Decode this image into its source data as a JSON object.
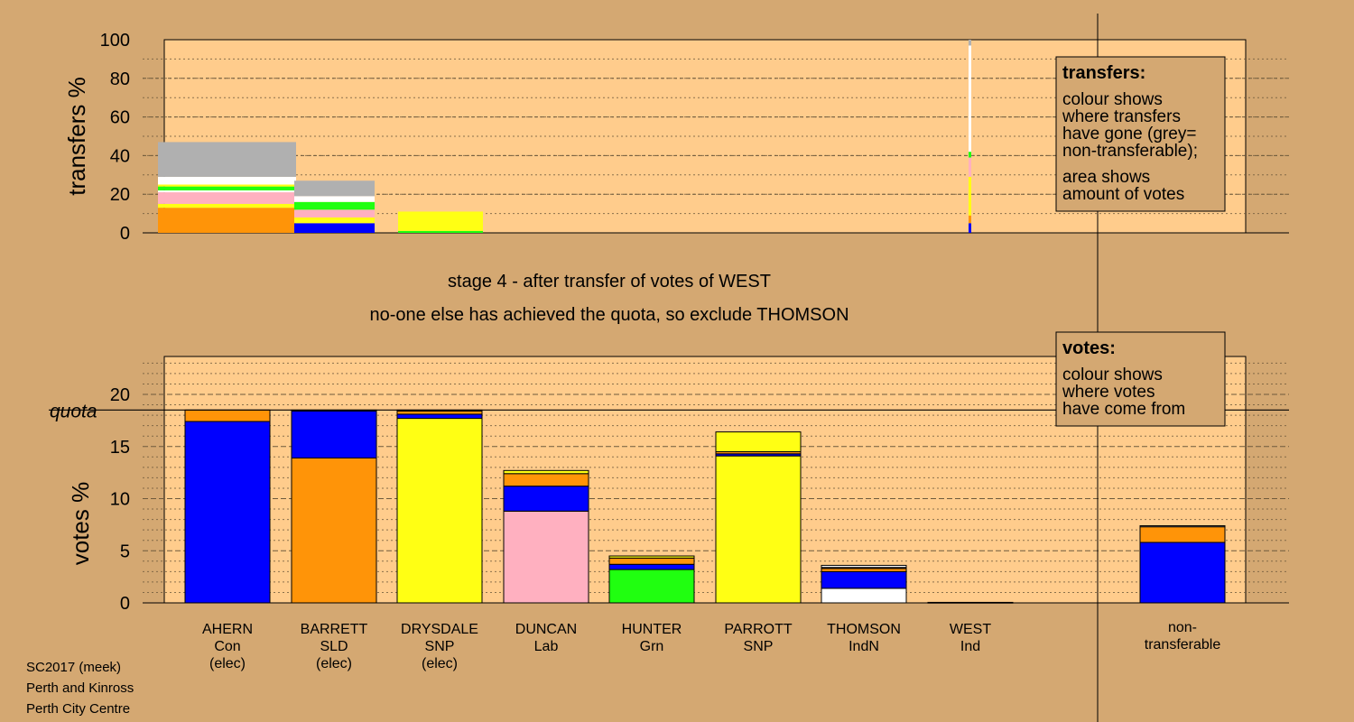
{
  "colors": {
    "background": "#d4a872",
    "plot_area": "#ffcc8c",
    "Con": "#0000ff",
    "SLD": "#ff9408",
    "SNP": "#ffff14",
    "Lab": "#ffb0c0",
    "Grn": "#20ff10",
    "Ind": "#ffffff",
    "non-transferable": "#b0b0b0"
  },
  "stage_line1": "stage 4 - after transfer of votes of WEST",
  "stage_line2": "no-one else has achieved the quota, so exclude THOMSON",
  "footer": [
    "SC2017 (meek)",
    "Perth and Kinross",
    "Perth City Centre"
  ],
  "legend_transfers": {
    "title": "transfers:",
    "lines": [
      "colour shows",
      "where transfers",
      "have gone (grey=",
      "non-transferable);",
      "area shows",
      "amount of votes"
    ]
  },
  "legend_votes": {
    "title": "votes:",
    "lines": [
      "colour shows",
      "where votes",
      "have come from"
    ]
  },
  "chart_data": [
    {
      "type": "bar",
      "subtype": "variable-width stacked (transfer flows)",
      "ylabel": "transfers %",
      "ylim": [
        0,
        100
      ],
      "yticks": [
        0,
        20,
        40,
        60,
        80,
        100
      ],
      "grid": true,
      "blocks": [
        {
          "width_share": 10,
          "segments": [
            {
              "color": "SLD",
              "value": 13
            },
            {
              "color": "SNP",
              "value": 2
            },
            {
              "color": "Lab",
              "value": 6
            },
            {
              "color": "Ind",
              "value": 1
            },
            {
              "color": "Grn",
              "value": 2
            },
            {
              "color": "SNP",
              "value": 1
            },
            {
              "color": "Ind",
              "value": 4
            },
            {
              "color": "non-transferable",
              "value": 18
            }
          ]
        },
        {
          "width_share": 5.8,
          "segments": [
            {
              "color": "Con",
              "value": 5
            },
            {
              "color": "SNP",
              "value": 3
            },
            {
              "color": "Lab",
              "value": 4
            },
            {
              "color": "Grn",
              "value": 4
            },
            {
              "color": "Ind",
              "value": 3
            },
            {
              "color": "non-transferable",
              "value": 8
            }
          ]
        },
        {
          "width_share": 6.2,
          "segments": [
            {
              "color": "Grn",
              "value": 1
            },
            {
              "color": "SNP",
              "value": 10
            }
          ]
        },
        {
          "width_share": 0.1,
          "segments": [
            {
              "color": "Con",
              "value": 5
            },
            {
              "color": "SLD",
              "value": 4
            },
            {
              "color": "SNP",
              "value": 20
            },
            {
              "color": "Lab",
              "value": 10
            },
            {
              "color": "Grn",
              "value": 3
            },
            {
              "color": "Ind",
              "value": 55
            },
            {
              "color": "non-transferable",
              "value": 3
            }
          ]
        }
      ]
    },
    {
      "type": "bar",
      "subtype": "stacked",
      "ylabel": "votes %",
      "ylim": [
        0,
        24
      ],
      "yticks": [
        0,
        5,
        10,
        15,
        20
      ],
      "grid": true,
      "quota": 18.5,
      "quota_label": "quota",
      "candidates": [
        {
          "name": "AHERN",
          "party": "Con",
          "status": "(elec)",
          "segments": [
            {
              "color": "Con",
              "value": 17.4
            },
            {
              "color": "SLD",
              "value": 1.1
            }
          ]
        },
        {
          "name": "BARRETT",
          "party": "SLD",
          "status": "(elec)",
          "segments": [
            {
              "color": "SLD",
              "value": 13.9
            },
            {
              "color": "Con",
              "value": 4.5
            },
            {
              "color": "SNP",
              "value": 0.1
            }
          ]
        },
        {
          "name": "DRYSDALE",
          "party": "SNP",
          "status": "(elec)",
          "segments": [
            {
              "color": "SNP",
              "value": 17.7
            },
            {
              "color": "Con",
              "value": 0.4
            },
            {
              "color": "SLD",
              "value": 0.3
            },
            {
              "color": "Lab",
              "value": 0.1
            }
          ]
        },
        {
          "name": "DUNCAN",
          "party": "Lab",
          "status": "",
          "segments": [
            {
              "color": "Lab",
              "value": 8.8
            },
            {
              "color": "Con",
              "value": 2.4
            },
            {
              "color": "SLD",
              "value": 1.2
            },
            {
              "color": "SNP",
              "value": 0.3
            }
          ]
        },
        {
          "name": "HUNTER",
          "party": "Grn",
          "status": "",
          "segments": [
            {
              "color": "Grn",
              "value": 3.2
            },
            {
              "color": "Con",
              "value": 0.5
            },
            {
              "color": "SLD",
              "value": 0.6
            },
            {
              "color": "SNP",
              "value": 0.2
            }
          ]
        },
        {
          "name": "PARROTT",
          "party": "SNP",
          "status": "",
          "segments": [
            {
              "color": "SNP",
              "value": 14.1
            },
            {
              "color": "Con",
              "value": 0.2
            },
            {
              "color": "SLD",
              "value": 0.2
            },
            {
              "color": "SNP",
              "value": 1.9
            }
          ]
        },
        {
          "name": "THOMSON",
          "party": "IndN",
          "status": "",
          "segments": [
            {
              "color": "Ind",
              "value": 1.4
            },
            {
              "color": "Con",
              "value": 1.6
            },
            {
              "color": "SLD",
              "value": 0.3
            },
            {
              "color": "Lab",
              "value": 0.1
            },
            {
              "color": "Ind",
              "value": 0.2
            }
          ]
        },
        {
          "name": "WEST",
          "party": "Ind",
          "status": "",
          "segments": [
            {
              "color": "Con",
              "value": 0.05
            }
          ]
        }
      ],
      "non_transferable": {
        "label_lines": [
          "non-",
          "transferable"
        ],
        "segments": [
          {
            "color": "Con",
            "value": 5.8
          },
          {
            "color": "SLD",
            "value": 1.5
          },
          {
            "color": "Ind",
            "value": 0.1
          }
        ]
      }
    }
  ]
}
